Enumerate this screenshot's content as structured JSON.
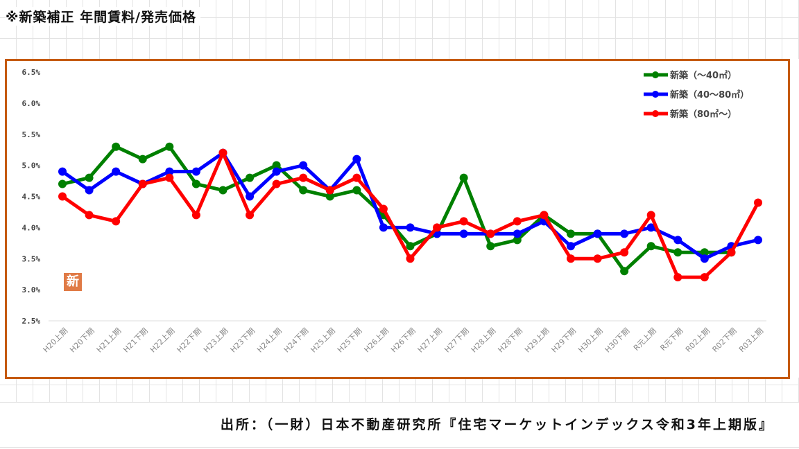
{
  "title": "※新築補正 年間賃料/発売価格",
  "footer": "出所：（一財）日本不動産研究所『住宅マーケットインデックス令和3年上期版』",
  "badge": "新",
  "chart_data": {
    "type": "line",
    "title": "※新築補正 年間賃料/発売価格",
    "xlabel": "",
    "ylabel": "",
    "ylim": [
      2.5,
      6.5
    ],
    "yticks": [
      "6.5%",
      "6.0%",
      "5.5%",
      "5.0%",
      "4.5%",
      "4.0%",
      "3.5%",
      "3.0%",
      "2.5%"
    ],
    "ytick_values": [
      6.5,
      6.0,
      5.5,
      5.0,
      4.5,
      4.0,
      3.5,
      3.0,
      2.5
    ],
    "legend_position": "top-right",
    "categories": [
      "H20上期",
      "H20下期",
      "H21上期",
      "H21下期",
      "H22上期",
      "H22下期",
      "H23上期",
      "H23下期",
      "H24上期",
      "H24下期",
      "H25上期",
      "H25下期",
      "H26上期",
      "H26下期",
      "H27上期",
      "H27下期",
      "H28上期",
      "H28下期",
      "H29上期",
      "H29下期",
      "H30上期",
      "H30下期",
      "R元上期",
      "R元下期",
      "R02上期",
      "R02下期",
      "R03上期"
    ],
    "series": [
      {
        "name": "新築（～40㎡）",
        "color": "#008000",
        "values": [
          4.7,
          4.8,
          5.3,
          5.1,
          5.3,
          4.7,
          4.6,
          4.8,
          5.0,
          4.6,
          4.5,
          4.6,
          4.2,
          3.7,
          3.9,
          4.8,
          3.7,
          3.8,
          4.2,
          3.9,
          3.9,
          3.3,
          3.7,
          3.6,
          3.6,
          3.6,
          null
        ]
      },
      {
        "name": "新築（40～80㎡）",
        "color": "#0000FF",
        "values": [
          4.9,
          4.6,
          4.9,
          4.7,
          4.9,
          4.9,
          5.2,
          4.5,
          4.9,
          5.0,
          4.6,
          5.1,
          4.0,
          4.0,
          3.9,
          3.9,
          3.9,
          3.9,
          4.1,
          3.7,
          3.9,
          3.9,
          4.0,
          3.8,
          3.5,
          3.7,
          3.8
        ]
      },
      {
        "name": "新築（80㎡～）",
        "color": "#FF0000",
        "values": [
          4.5,
          4.2,
          4.1,
          4.7,
          4.8,
          4.2,
          5.2,
          4.2,
          4.7,
          4.8,
          4.6,
          4.8,
          4.3,
          3.5,
          4.0,
          4.1,
          3.9,
          4.1,
          4.2,
          3.5,
          3.5,
          3.6,
          4.2,
          3.2,
          3.2,
          3.6,
          4.4
        ]
      }
    ]
  }
}
